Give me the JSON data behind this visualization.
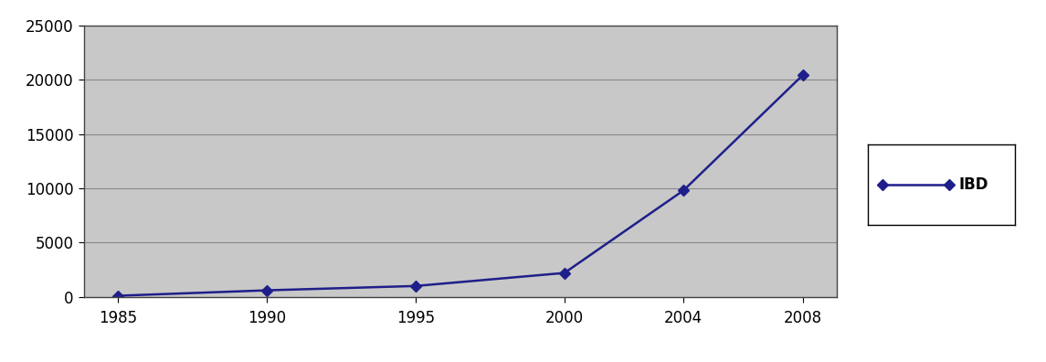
{
  "x": [
    1985,
    1990,
    1995,
    2000,
    2004,
    2008
  ],
  "y": [
    100,
    600,
    1000,
    2200,
    9800,
    20400
  ],
  "line_color": "#1F1F8B",
  "marker": "D",
  "marker_size": 6,
  "marker_facecolor": "#1F1F8B",
  "legend_label": "IBD",
  "ylim": [
    0,
    25000
  ],
  "yticks": [
    0,
    5000,
    10000,
    15000,
    20000,
    25000
  ],
  "xticks": [
    1985,
    1990,
    1995,
    2000,
    2004,
    2008
  ],
  "plot_bg_color": "#C8C8C8",
  "fig_bg_color": "#FFFFFF",
  "grid_color": "#888888",
  "linewidth": 1.8,
  "tick_fontsize": 12,
  "legend_fontsize": 12
}
